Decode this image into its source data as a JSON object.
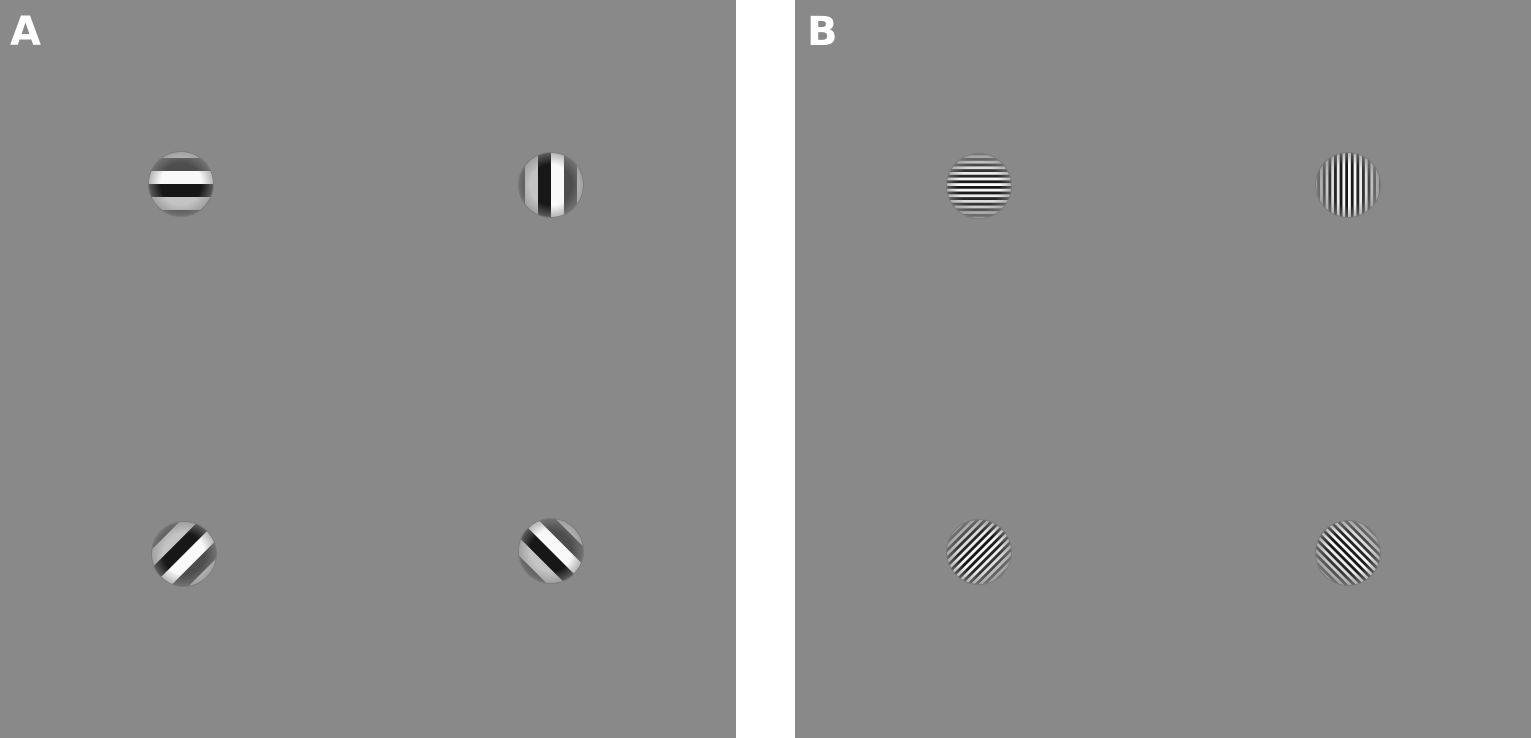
{
  "panels": [
    {
      "label": "A",
      "spatial_frequency": "low",
      "stimuli": [
        {
          "position": "top-left",
          "orientation_deg": 0
        },
        {
          "position": "top-right",
          "orientation_deg": 90
        },
        {
          "position": "bottom-left",
          "orientation_deg": 135
        },
        {
          "position": "bottom-right",
          "orientation_deg": 45
        }
      ]
    },
    {
      "label": "B",
      "spatial_frequency": "high",
      "stimuli": [
        {
          "position": "top-left",
          "orientation_deg": 0
        },
        {
          "position": "top-right",
          "orientation_deg": 90
        },
        {
          "position": "bottom-left",
          "orientation_deg": 135
        },
        {
          "position": "bottom-right",
          "orientation_deg": 45
        }
      ]
    }
  ],
  "colors": {
    "background": "#898989",
    "light": "#ffffff",
    "dark": "#111111"
  }
}
